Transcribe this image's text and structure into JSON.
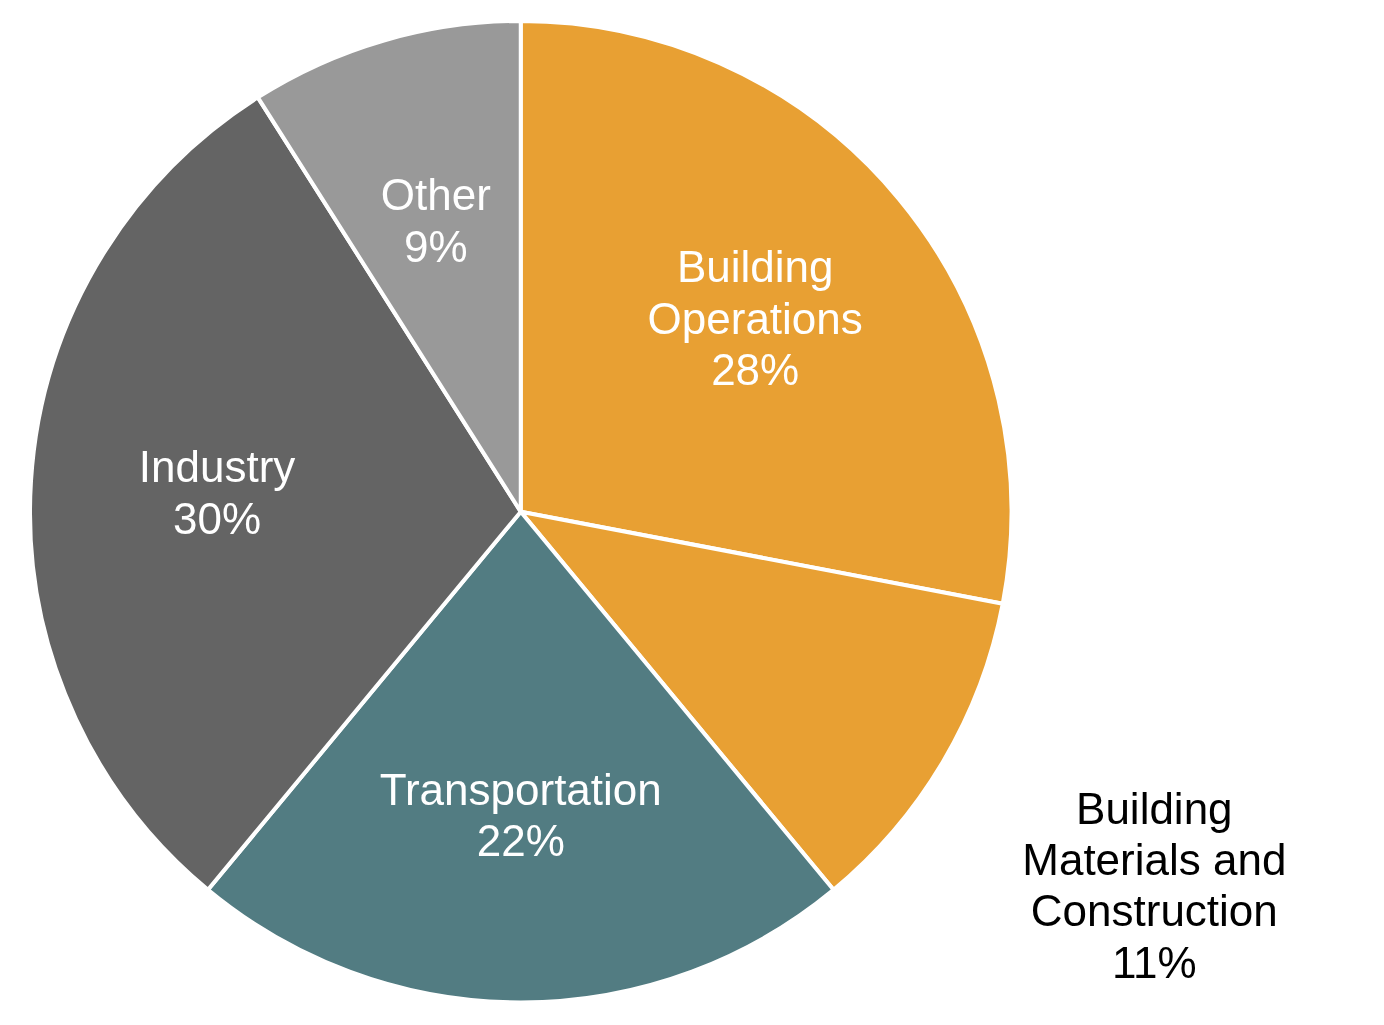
{
  "chart_data": {
    "type": "pie",
    "categories": [
      "Building Operations",
      "Building Materials and Construction",
      "Transportation",
      "Industry",
      "Other"
    ],
    "values": [
      28,
      11,
      22,
      30,
      9
    ],
    "colors": [
      "#e8a033",
      "#e8a033",
      "#527c82",
      "#646464",
      "#999999"
    ],
    "value_labels": [
      "28%",
      "11%",
      "22%",
      "30%",
      "9%"
    ]
  }
}
